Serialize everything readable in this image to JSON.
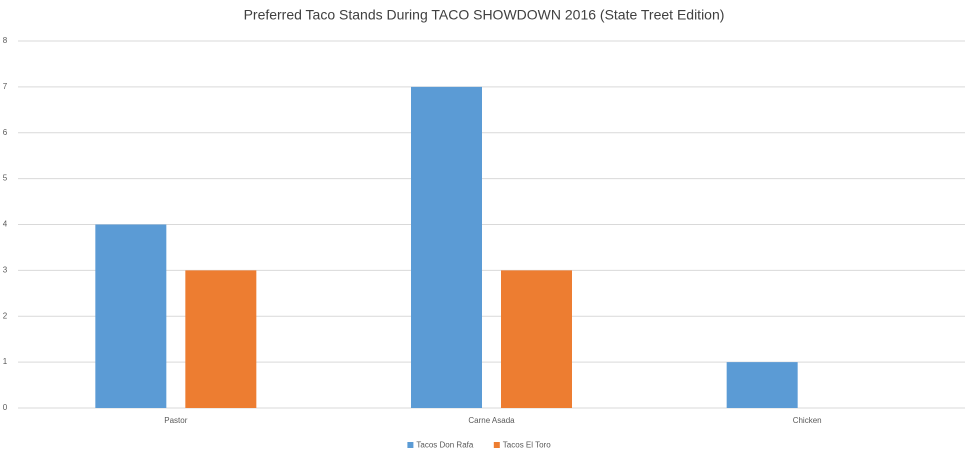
{
  "chart_data": {
    "type": "bar",
    "title": "Preferred Taco Stands During TACO SHOWDOWN 2016 (State Treet Edition)",
    "categories": [
      "Pastor",
      "Carne Asada",
      "Chicken"
    ],
    "series": [
      {
        "name": "Tacos Don Rafa",
        "color": "#5b9bd5",
        "values": [
          4,
          7,
          1
        ]
      },
      {
        "name": "Tacos El Toro",
        "color": "#ed7d31",
        "values": [
          3,
          3,
          0
        ]
      }
    ],
    "ylim": [
      0,
      8
    ],
    "yticks": [
      0,
      1,
      2,
      3,
      4,
      5,
      6,
      7,
      8
    ],
    "grid": true,
    "legend": "bottom"
  }
}
